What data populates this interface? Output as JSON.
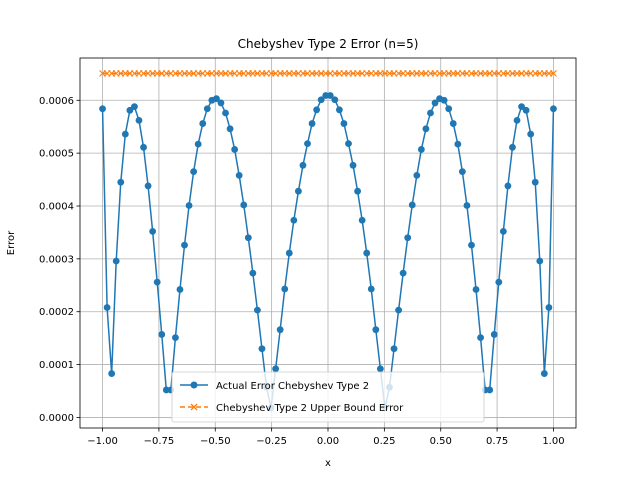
{
  "chart_data": {
    "type": "line",
    "title": "Chebyshev Type 2 Error (n=5)",
    "xlabel": "x",
    "ylabel": "Error",
    "xlim": [
      -1.1,
      1.1
    ],
    "ylim": [
      -2e-05,
      0.00068
    ],
    "x_ticks": [
      -1.0,
      -0.75,
      -0.5,
      -0.25,
      0.0,
      0.25,
      0.5,
      0.75,
      1.0
    ],
    "x_tick_labels": [
      "−1.00",
      "−0.75",
      "−0.50",
      "−0.25",
      "0.00",
      "0.25",
      "0.50",
      "0.75",
      "1.00"
    ],
    "y_ticks": [
      0.0,
      0.0001,
      0.0002,
      0.0003,
      0.0004,
      0.0005,
      0.0006
    ],
    "y_tick_labels": [
      "0.0000",
      "0.0001",
      "0.0002",
      "0.0003",
      "0.0004",
      "0.0005",
      "0.0006"
    ],
    "grid": true,
    "legend_position": "lower-center",
    "colors": {
      "actual": "#1f77b4",
      "bound": "#ff7f0e"
    },
    "series": [
      {
        "name": "Actual Error Chebyshev Type 2",
        "marker": "circle",
        "line_style": "solid",
        "x": [
          -1.0,
          -0.9798,
          -0.9596,
          -0.9394,
          -0.9192,
          -0.899,
          -0.8788,
          -0.8586,
          -0.8384,
          -0.8182,
          -0.798,
          -0.7778,
          -0.7576,
          -0.7374,
          -0.7172,
          -0.697,
          -0.6768,
          -0.6566,
          -0.6364,
          -0.6162,
          -0.596,
          -0.5758,
          -0.5556,
          -0.5354,
          -0.5152,
          -0.4949,
          -0.4747,
          -0.4545,
          -0.4343,
          -0.4141,
          -0.3939,
          -0.3737,
          -0.3535,
          -0.3333,
          -0.3131,
          -0.2929,
          -0.2727,
          -0.2525,
          -0.2323,
          -0.2121,
          -0.1919,
          -0.1717,
          -0.1515,
          -0.1313,
          -0.1111,
          -0.0909,
          -0.0707,
          -0.0505,
          -0.0303,
          -0.0101,
          0.0101,
          0.0303,
          0.0505,
          0.0707,
          0.0909,
          0.1111,
          0.1313,
          0.1515,
          0.1717,
          0.1919,
          0.2121,
          0.2323,
          0.2525,
          0.2727,
          0.2929,
          0.3131,
          0.3333,
          0.3535,
          0.3737,
          0.3939,
          0.4141,
          0.4343,
          0.4545,
          0.4747,
          0.4949,
          0.5152,
          0.5354,
          0.5556,
          0.5758,
          0.596,
          0.6162,
          0.6364,
          0.6566,
          0.6768,
          0.697,
          0.7172,
          0.7374,
          0.7576,
          0.7778,
          0.798,
          0.8182,
          0.8384,
          0.8586,
          0.8788,
          0.899,
          0.9192,
          0.9394,
          0.9596,
          0.9798,
          1.0
        ],
        "y": [
          0.000584,
          0.000208,
          8.3e-05,
          0.000296,
          0.000445,
          0.000536,
          0.000581,
          0.000588,
          0.000562,
          0.000511,
          0.000438,
          0.000352,
          0.000256,
          0.000157,
          5.2e-05,
          5.2e-05,
          0.000151,
          0.000242,
          0.000326,
          0.000401,
          0.000465,
          0.000517,
          0.000556,
          0.000584,
          0.0006,
          0.000603,
          0.000595,
          0.000576,
          0.000546,
          0.000507,
          0.000458,
          0.000402,
          0.00034,
          0.000273,
          0.000203,
          0.00013,
          5.7e-05,
          1.8e-05,
          9.2e-05,
          0.000166,
          0.000243,
          0.000311,
          0.000373,
          0.000428,
          0.000477,
          0.000518,
          0.000556,
          0.000582,
          0.000601,
          0.000609,
          0.000609,
          0.000601,
          0.000582,
          0.000556,
          0.000518,
          0.000477,
          0.000428,
          0.000373,
          0.000311,
          0.000243,
          0.000166,
          9.2e-05,
          1.8e-05,
          5.7e-05,
          0.00013,
          0.000203,
          0.000273,
          0.00034,
          0.000402,
          0.000458,
          0.000507,
          0.000546,
          0.000576,
          0.000595,
          0.000603,
          0.0006,
          0.000584,
          0.000556,
          0.000517,
          0.000465,
          0.000401,
          0.000326,
          0.000242,
          0.000151,
          5.2e-05,
          5.2e-05,
          0.000157,
          0.000256,
          0.000352,
          0.000438,
          0.000511,
          0.000562,
          0.000588,
          0.000581,
          0.000536,
          0.000445,
          0.000296,
          8.3e-05,
          0.000208,
          0.000584
        ]
      },
      {
        "name": "Chebyshev Type 2 Upper Bound Error",
        "marker": "x",
        "line_style": "dashed",
        "constant_y": 0.000651
      }
    ]
  }
}
